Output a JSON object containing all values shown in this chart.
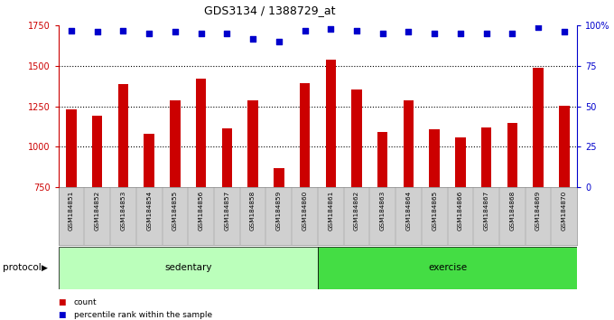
{
  "title": "GDS3134 / 1388729_at",
  "samples": [
    "GSM184851",
    "GSM184852",
    "GSM184853",
    "GSM184854",
    "GSM184855",
    "GSM184856",
    "GSM184857",
    "GSM184858",
    "GSM184859",
    "GSM184860",
    "GSM184861",
    "GSM184862",
    "GSM184863",
    "GSM184864",
    "GSM184865",
    "GSM184866",
    "GSM184867",
    "GSM184868",
    "GSM184869",
    "GSM184870"
  ],
  "counts": [
    1230,
    1195,
    1390,
    1080,
    1285,
    1420,
    1115,
    1290,
    870,
    1395,
    1540,
    1355,
    1090,
    1285,
    1110,
    1060,
    1120,
    1145,
    1490,
    1255
  ],
  "percentiles": [
    97,
    96,
    97,
    95,
    96,
    95,
    95,
    92,
    90,
    97,
    98,
    97,
    95,
    96,
    95,
    95,
    95,
    95,
    99,
    96
  ],
  "bar_color": "#cc0000",
  "dot_color": "#0000cc",
  "ylim_left": [
    750,
    1750
  ],
  "ylim_right": [
    0,
    100
  ],
  "yticks_left": [
    750,
    1000,
    1250,
    1500,
    1750
  ],
  "yticks_right": [
    0,
    25,
    50,
    75,
    100
  ],
  "ytick_labels_right": [
    "0",
    "25",
    "50",
    "75",
    "100%"
  ],
  "grid_values": [
    1000,
    1250,
    1500
  ],
  "groups": [
    {
      "label": "sedentary",
      "start": 0,
      "end": 10,
      "color": "#bbffbb"
    },
    {
      "label": "exercise",
      "start": 10,
      "end": 20,
      "color": "#44dd44"
    }
  ],
  "group_label": "protocol",
  "legend_items": [
    {
      "label": "count",
      "color": "#cc0000"
    },
    {
      "label": "percentile rank within the sample",
      "color": "#0000cc"
    }
  ],
  "tick_area_color": "#d0d0d0",
  "bar_width": 0.4
}
